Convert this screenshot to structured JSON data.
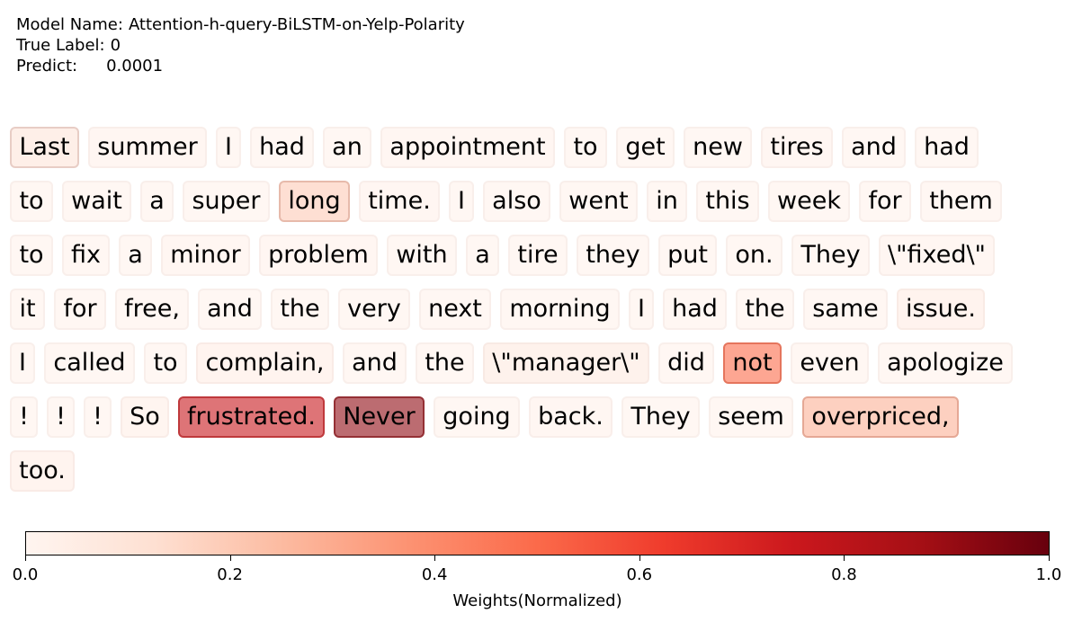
{
  "header": {
    "model_label": "Model Name:",
    "model_value": "Attention-h-query-BiLSTM-on-Yelp-Polarity",
    "true_label_label": "True Label:",
    "true_label_value": "0",
    "predict_label": "Predict:",
    "predict_value": "0.0001"
  },
  "chart_data": {
    "type": "heatmap",
    "colormap": "Reds",
    "colorbar": {
      "label": "Weights(Normalized)",
      "range": [
        0.0,
        1.0
      ],
      "ticks": [
        "0.0",
        "0.2",
        "0.4",
        "0.6",
        "0.8",
        "1.0"
      ],
      "colors": [
        "#fff5f0",
        "#fee0d2",
        "#fcbba1",
        "#fc9272",
        "#fb6a4a",
        "#ef3b2c",
        "#cb181d",
        "#a50f15",
        "#67000d"
      ]
    },
    "lines": [
      [
        {
          "w": "Last",
          "v": 0.1
        },
        {
          "w": "summer",
          "v": 0.03
        },
        {
          "w": "I",
          "v": 0.02
        },
        {
          "w": "had",
          "v": 0.02
        },
        {
          "w": "an",
          "v": 0.02
        },
        {
          "w": "appointment",
          "v": 0.03
        },
        {
          "w": "to",
          "v": 0.02
        },
        {
          "w": "get",
          "v": 0.02
        },
        {
          "w": "new",
          "v": 0.02
        },
        {
          "w": "tires",
          "v": 0.03
        },
        {
          "w": "and",
          "v": 0.02
        },
        {
          "w": "had",
          "v": 0.02
        }
      ],
      [
        {
          "w": "to",
          "v": 0.02
        },
        {
          "w": "wait",
          "v": 0.02
        },
        {
          "w": "a",
          "v": 0.02
        },
        {
          "w": "super",
          "v": 0.02
        },
        {
          "w": "long",
          "v": 0.2
        },
        {
          "w": "time.",
          "v": 0.03
        },
        {
          "w": "I",
          "v": 0.02
        },
        {
          "w": "also",
          "v": 0.02
        },
        {
          "w": "went",
          "v": 0.02
        },
        {
          "w": "in",
          "v": 0.02
        },
        {
          "w": "this",
          "v": 0.02
        },
        {
          "w": "week",
          "v": 0.02
        },
        {
          "w": "for",
          "v": 0.02
        },
        {
          "w": "them",
          "v": 0.02
        }
      ],
      [
        {
          "w": "to",
          "v": 0.02
        },
        {
          "w": "fix",
          "v": 0.02
        },
        {
          "w": "a",
          "v": 0.02
        },
        {
          "w": "minor",
          "v": 0.03
        },
        {
          "w": "problem",
          "v": 0.03
        },
        {
          "w": "with",
          "v": 0.02
        },
        {
          "w": "a",
          "v": 0.02
        },
        {
          "w": "tire",
          "v": 0.02
        },
        {
          "w": "they",
          "v": 0.02
        },
        {
          "w": "put",
          "v": 0.02
        },
        {
          "w": "on.",
          "v": 0.02
        },
        {
          "w": "They",
          "v": 0.02
        },
        {
          "w": "\\\"fixed\\\"",
          "v": 0.03
        }
      ],
      [
        {
          "w": "it",
          "v": 0.02
        },
        {
          "w": "for",
          "v": 0.02
        },
        {
          "w": "free,",
          "v": 0.02
        },
        {
          "w": "and",
          "v": 0.02
        },
        {
          "w": "the",
          "v": 0.02
        },
        {
          "w": "very",
          "v": 0.02
        },
        {
          "w": "next",
          "v": 0.02
        },
        {
          "w": "morning",
          "v": 0.02
        },
        {
          "w": "I",
          "v": 0.02
        },
        {
          "w": "had",
          "v": 0.02
        },
        {
          "w": "the",
          "v": 0.02
        },
        {
          "w": "same",
          "v": 0.02
        },
        {
          "w": "issue.",
          "v": 0.06
        }
      ],
      [
        {
          "w": "I",
          "v": 0.02
        },
        {
          "w": "called",
          "v": 0.02
        },
        {
          "w": "to",
          "v": 0.02
        },
        {
          "w": "complain,",
          "v": 0.05
        },
        {
          "w": "and",
          "v": 0.02
        },
        {
          "w": "the",
          "v": 0.02
        },
        {
          "w": "\\\"manager\\\"",
          "v": 0.07
        },
        {
          "w": "did",
          "v": 0.02
        },
        {
          "w": "not",
          "v": 0.5
        },
        {
          "w": "even",
          "v": 0.02
        },
        {
          "w": "apologize",
          "v": 0.02
        }
      ],
      [
        {
          "w": "!",
          "v": 0.02
        },
        {
          "w": "!",
          "v": 0.02
        },
        {
          "w": "!",
          "v": 0.02
        },
        {
          "w": "So",
          "v": 0.04
        },
        {
          "w": "frustrated.",
          "v": 0.76
        },
        {
          "w": "Never",
          "v": 0.92
        },
        {
          "w": "going",
          "v": 0.02
        },
        {
          "w": "back.",
          "v": 0.03
        },
        {
          "w": "They",
          "v": 0.02
        },
        {
          "w": "seem",
          "v": 0.02
        },
        {
          "w": "overpriced,",
          "v": 0.28
        }
      ],
      [
        {
          "w": "too.",
          "v": 0.05
        }
      ]
    ]
  }
}
